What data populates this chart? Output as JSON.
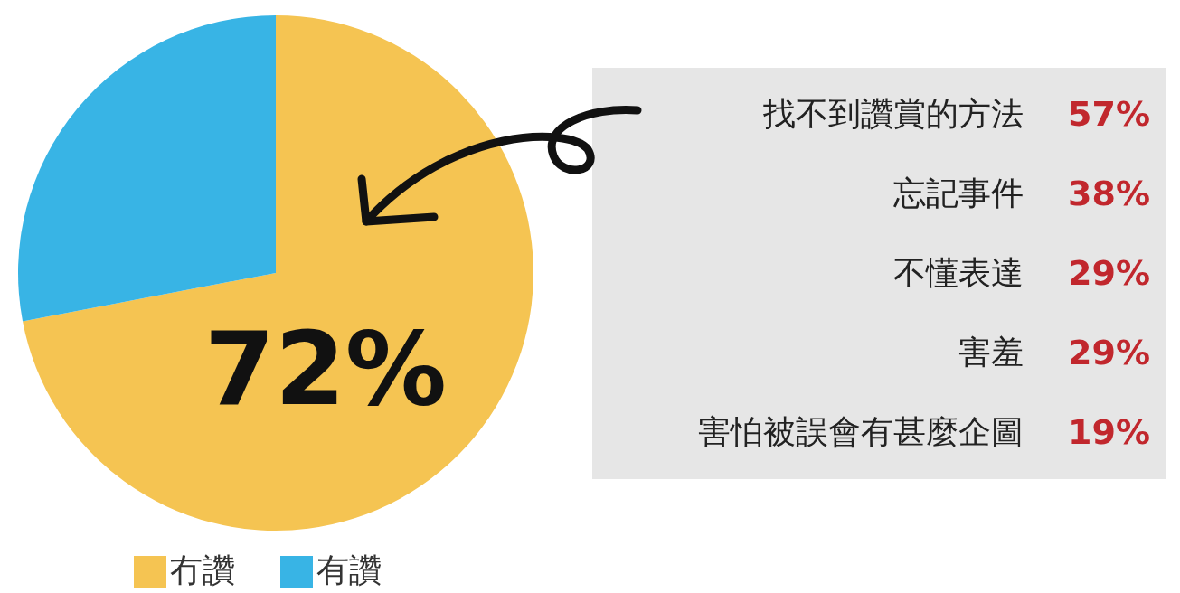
{
  "chart_data": [
    {
      "type": "pie",
      "categories": [
        "冇讚",
        "有讚"
      ],
      "values": [
        72,
        28
      ],
      "colors": [
        "#f5c452",
        "#38b4e5"
      ],
      "value_labels": [
        "72%",
        null
      ],
      "legend": "bottom"
    },
    {
      "type": "other",
      "annotations": [
        "找不到讚賞的方法",
        "57%",
        "忘記事件",
        "38%",
        "不懂表達",
        "29%",
        "害羞",
        "29%",
        "害怕被誤會有甚麼企圖",
        "19%"
      ]
    }
  ]
}
